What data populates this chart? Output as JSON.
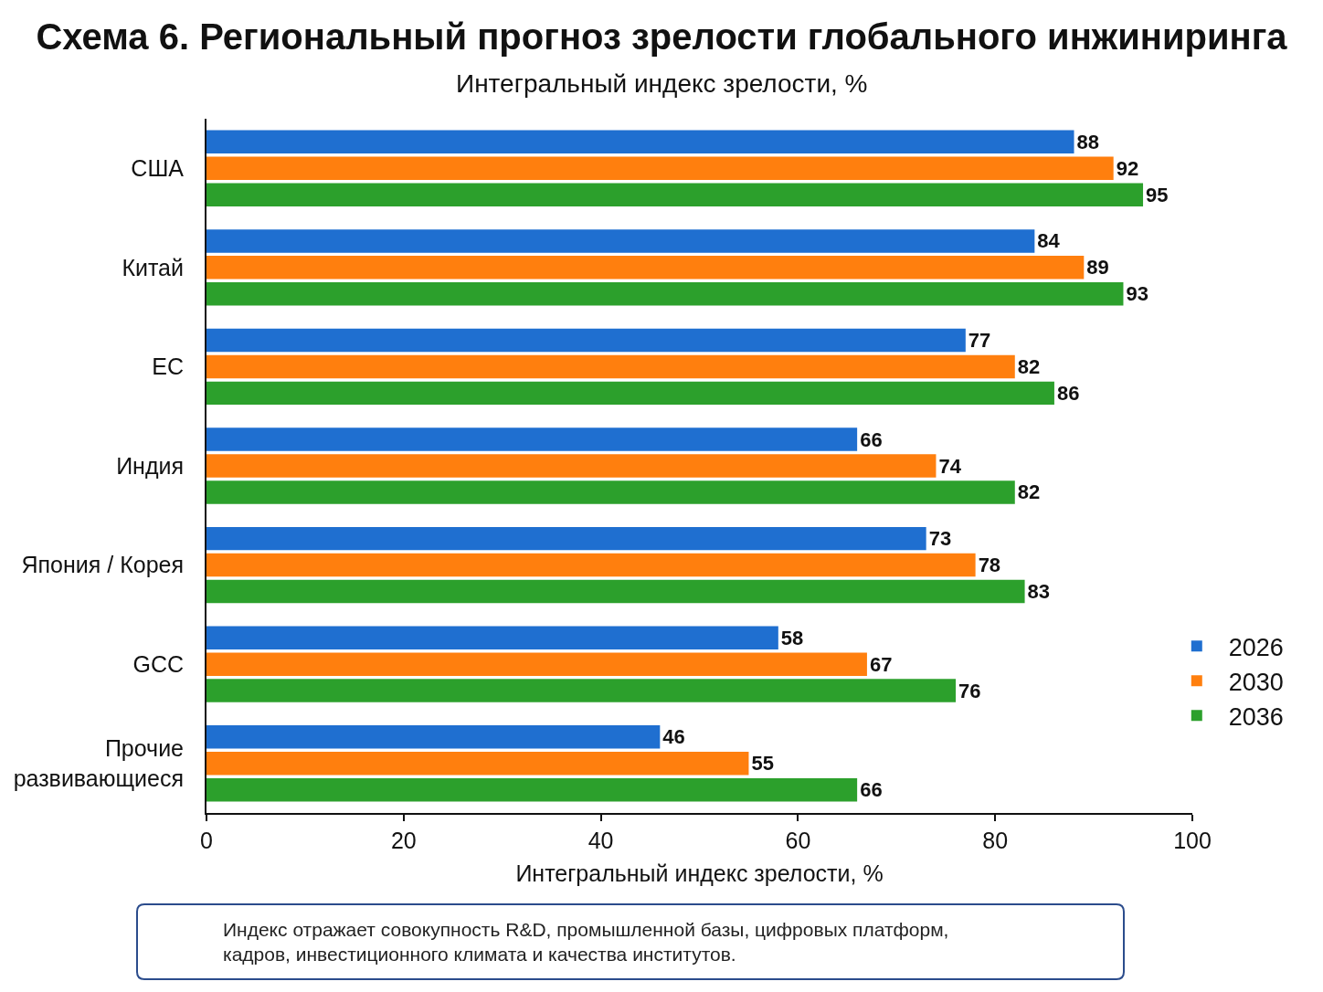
{
  "chart_data": {
    "type": "bar",
    "orientation": "horizontal",
    "title": "Схема 6. Региональный прогноз зрелости глобального инжиниринга",
    "subtitle": "Интегральный индекс зрелости, %",
    "xlabel": "Интегральный индекс зрелости, %",
    "categories": [
      "США",
      "Китай",
      "ЕС",
      "Индия",
      "Япония / Корея",
      "GCC",
      "Прочие развивающиеся"
    ],
    "series": [
      {
        "name": "2026",
        "color": "#1f6fd0",
        "values": [
          88,
          84,
          77,
          66,
          73,
          58,
          46
        ]
      },
      {
        "name": "2030",
        "color": "#ff7f0e",
        "values": [
          92,
          89,
          82,
          74,
          78,
          67,
          55
        ]
      },
      {
        "name": "2036",
        "color": "#2ca02c",
        "values": [
          95,
          93,
          86,
          82,
          83,
          76,
          66
        ]
      }
    ],
    "xlim": [
      0,
      100
    ],
    "xticks": [
      0,
      20,
      40,
      60,
      80,
      100
    ],
    "data_labels": true,
    "legend": "bottom right",
    "annotations": [
      "Индекс отражает совокупность R&D, промышленной базы, цифровых платформ, кадров, инвестиционного климата и качества институтов."
    ]
  }
}
